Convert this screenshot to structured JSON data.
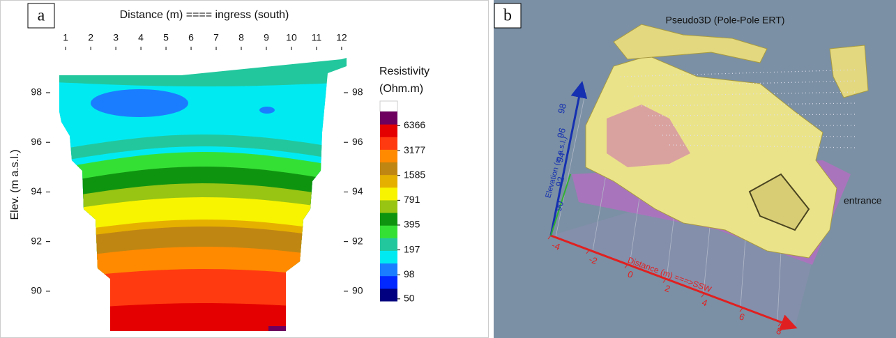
{
  "chart_data": [
    {
      "type": "contour",
      "label": "a",
      "title": "Distance (m) ==== ingress (south)",
      "ylabel": "Elev. (m a.s.l.)",
      "xlim": [
        0.19,
        12.28
      ],
      "xticks": [
        1,
        2,
        3,
        4,
        5,
        6,
        7,
        8,
        9,
        10,
        11,
        12
      ],
      "ylim": [
        88.2,
        100.47
      ],
      "yticks": [
        90,
        92,
        94,
        96,
        98
      ],
      "colorbar": {
        "title": [
          "Resistivity",
          "(Ohm.m)"
        ],
        "log": true,
        "clim": [
          47,
          9500
        ],
        "ticks": [
          50,
          98,
          197,
          395,
          791,
          1585,
          3177,
          6366
        ],
        "colors": [
          "#000080",
          "#0028ff",
          "#1a7dff",
          "#00eaf2",
          "#22c79d",
          "#35e035",
          "#0f9410",
          "#98c414",
          "#f8f400",
          "#e6b000",
          "#c08612",
          "#ff8a00",
          "#ff3a10",
          "#e40000",
          "#6e0060"
        ]
      }
    },
    {
      "type": "surface3d",
      "label": "b",
      "title": "Pseudo3D (Pole-Pole ERT)",
      "xlabel": "Distance (m) ===>SSW",
      "ylabel": "Elevation (m a.s.l.)",
      "xticks": [
        -4,
        -2,
        0,
        2,
        4,
        6,
        8
      ],
      "yticks": [
        90,
        92,
        94,
        96,
        98
      ],
      "annotation": "entrance"
    }
  ]
}
